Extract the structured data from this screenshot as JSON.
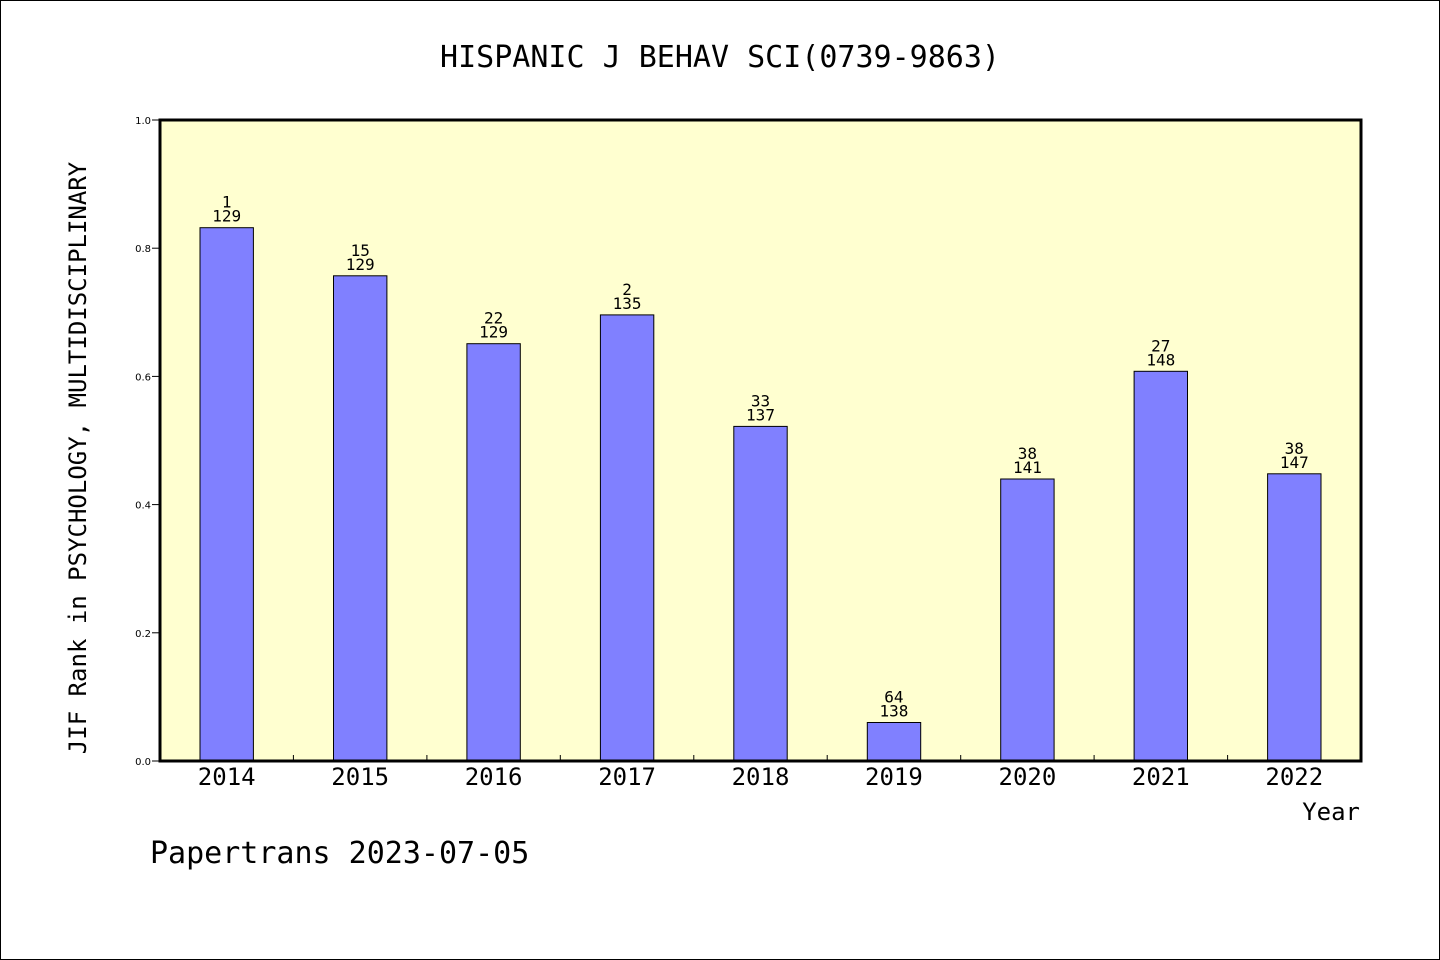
{
  "chart_data": {
    "type": "bar",
    "title": "HISPANIC J BEHAV SCI(0739-9863)",
    "xlabel": "Year",
    "ylabel": "JIF Rank in PSYCHOLOGY, MULTIDISCIPLINARY",
    "ylim": [
      0,
      1.0
    ],
    "yticks": [
      "0.0",
      "0.2",
      "0.4",
      "0.6",
      "0.8",
      "1.0"
    ],
    "grid": false,
    "categories": [
      "2014",
      "2015",
      "2016",
      "2017",
      "2018",
      "2019",
      "2020",
      "2021",
      "2022"
    ],
    "values": [
      0.832,
      0.757,
      0.651,
      0.696,
      0.522,
      0.06,
      0.44,
      0.608,
      0.448
    ],
    "rank_labels": [
      {
        "rank": "1",
        "total": "129"
      },
      {
        "rank": "15",
        "total": "129"
      },
      {
        "rank": "22",
        "total": "129"
      },
      {
        "rank": "2",
        "total": "135"
      },
      {
        "rank": "33",
        "total": "137"
      },
      {
        "rank": "64",
        "total": "138"
      },
      {
        "rank": "38",
        "total": "141"
      },
      {
        "rank": "27",
        "total": "148"
      },
      {
        "rank": "38",
        "total": "147"
      }
    ],
    "colors": {
      "plot_background": "#ffffd0",
      "bar_fill": "#8080ff",
      "bar_stroke": "#000000",
      "axis": "#000000"
    }
  },
  "footer": "Papertrans 2023-07-05"
}
